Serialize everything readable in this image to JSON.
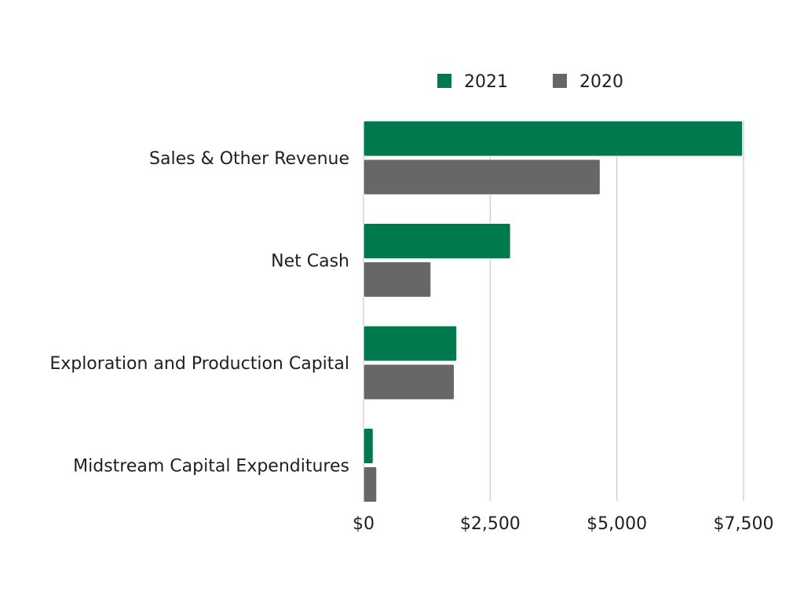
{
  "chart_data": {
    "type": "bar",
    "orientation": "horizontal",
    "title": "",
    "xlabel": "",
    "ylabel": "",
    "categories": [
      "Sales & Other Revenue",
      "Net Cash",
      "Exploration and Production Capital",
      "Midstream Capital Expenditures"
    ],
    "series": [
      {
        "name": "2021",
        "color": "#007a4d",
        "values": [
          7480,
          2900,
          1840,
          190
        ]
      },
      {
        "name": "2020",
        "color": "#676767",
        "values": [
          4670,
          1330,
          1790,
          260
        ]
      }
    ],
    "xlim": [
      0,
      7500
    ],
    "x_ticks": [
      0,
      2500,
      5000,
      7500
    ],
    "x_tick_labels": [
      "$0",
      "$2,500",
      "$5,000",
      "$7,500"
    ],
    "grid": true,
    "legend_position": "top"
  }
}
